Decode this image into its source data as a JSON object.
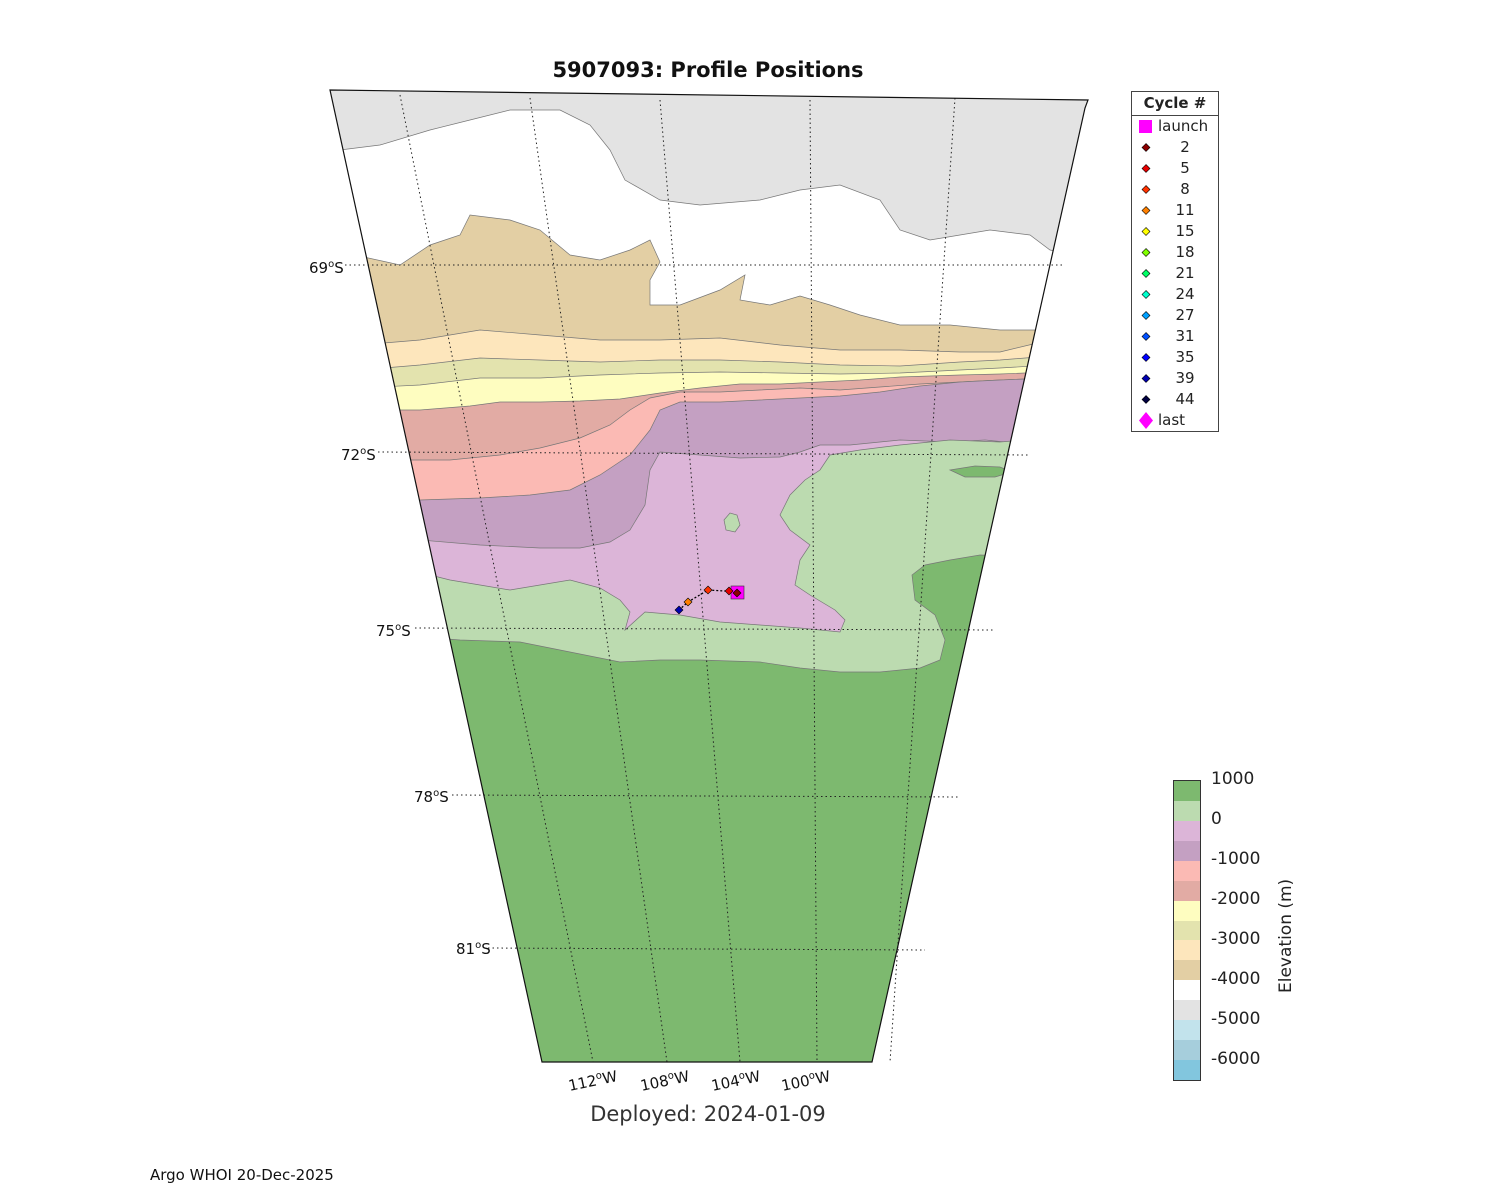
{
  "title": "5907093: Profile Positions",
  "subtitle": "Deployed: 2024-01-09",
  "footer": "Argo WHOI 20-Dec-2025",
  "map": {
    "projection": "polar sector",
    "lat_labels": [
      {
        "deg": "69",
        "hemi": "S"
      },
      {
        "deg": "72",
        "hemi": "S"
      },
      {
        "deg": "75",
        "hemi": "S"
      },
      {
        "deg": "78",
        "hemi": "S"
      },
      {
        "deg": "81",
        "hemi": "S"
      }
    ],
    "lon_labels": [
      {
        "deg": "112",
        "hemi": "W"
      },
      {
        "deg": "108",
        "hemi": "W"
      },
      {
        "deg": "104",
        "hemi": "W"
      },
      {
        "deg": "100",
        "hemi": "W"
      }
    ],
    "elevation_colors": {
      "land_high": "#7db96f",
      "land_low": "#bcdbb0",
      "shelf": "#dcb5d8",
      "slope_1000": "#c4a0c2",
      "slope_1500": "#fbbab4",
      "slope_2000": "#e2aba4",
      "deep_2500": "#fefdc0",
      "deep_3000": "#e3e3ae",
      "deep_3500": "#fde6bc",
      "deep_4000": "#e3cfa4",
      "abyss_4500": "#ffffff",
      "abyss_5000": "#e3e3e3"
    },
    "trajectory_color": "#000000"
  },
  "legend": {
    "title": "Cycle #",
    "entries": [
      {
        "label": "launch",
        "marker": "square",
        "color": "#ff00ff"
      },
      {
        "label": "2",
        "marker": "diamond",
        "color": "#8b0000"
      },
      {
        "label": "5",
        "marker": "diamond",
        "color": "#e60000"
      },
      {
        "label": "8",
        "marker": "diamond",
        "color": "#ff3300"
      },
      {
        "label": "11",
        "marker": "diamond",
        "color": "#ff8000"
      },
      {
        "label": "15",
        "marker": "diamond",
        "color": "#ffff00"
      },
      {
        "label": "18",
        "marker": "diamond",
        "color": "#80ff00"
      },
      {
        "label": "21",
        "marker": "diamond",
        "color": "#00ff66"
      },
      {
        "label": "24",
        "marker": "diamond",
        "color": "#00ffcc"
      },
      {
        "label": "27",
        "marker": "diamond",
        "color": "#00a0ff"
      },
      {
        "label": "31",
        "marker": "diamond",
        "color": "#0050ff"
      },
      {
        "label": "35",
        "marker": "diamond",
        "color": "#0000ff"
      },
      {
        "label": "39",
        "marker": "diamond",
        "color": "#0000b0"
      },
      {
        "label": "44",
        "marker": "diamond",
        "color": "#000040"
      },
      {
        "label": "last",
        "marker": "big-diamond",
        "color": "#ff00ff"
      }
    ]
  },
  "colorbar": {
    "label": "Elevation (m)",
    "ticks": [
      "1000",
      "0",
      "-1000",
      "-2000",
      "-3000",
      "-4000",
      "-5000",
      "-6000"
    ],
    "segments": [
      "#7db96f",
      "#bcdbb0",
      "#dcb5d8",
      "#c4a0c2",
      "#fbbab4",
      "#e2aba4",
      "#fefdc0",
      "#e3e3ae",
      "#fde6bc",
      "#e3cfa4",
      "#ffffff",
      "#e3e3e3",
      "#c2e3ec",
      "#a6cedc",
      "#82c6de"
    ]
  }
}
